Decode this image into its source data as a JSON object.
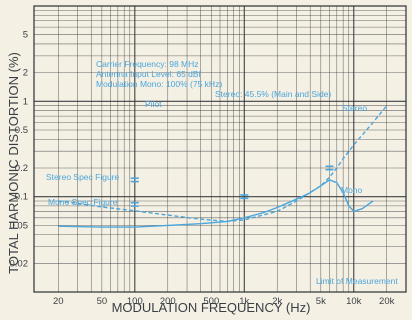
{
  "chart_data": {
    "type": "line",
    "xlabel": "MODULATION FREQUENCY (Hz)",
    "ylabel": "TOTAL HARMONIC DISTORTION (%)",
    "x_scale": "log",
    "y_scale": "log",
    "xlim": [
      12,
      30000
    ],
    "ylim": [
      0.01,
      10
    ],
    "grid": true,
    "x_ticks": [
      {
        "v": 20,
        "label": "20"
      },
      {
        "v": 50,
        "label": "50"
      },
      {
        "v": 100,
        "label": "100"
      },
      {
        "v": 200,
        "label": "200"
      },
      {
        "v": 500,
        "label": "500"
      },
      {
        "v": 1000,
        "label": "1k"
      },
      {
        "v": 2000,
        "label": "2k"
      },
      {
        "v": 5000,
        "label": "5k"
      },
      {
        "v": 10000,
        "label": "10k"
      },
      {
        "v": 20000,
        "label": "20k"
      }
    ],
    "y_ticks": [
      {
        "v": 5,
        "label": "5"
      },
      {
        "v": 2,
        "label": "2"
      },
      {
        "v": 1,
        "label": "1"
      },
      {
        "v": 0.5,
        "label": "0.5"
      },
      {
        "v": 0.2,
        "label": "0.2"
      },
      {
        "v": 0.1,
        "label": "0.1"
      },
      {
        "v": 0.05,
        "label": "0.05"
      },
      {
        "v": 0.02,
        "label": "0.02"
      }
    ],
    "series": [
      {
        "name": "Stereo",
        "style": "dashed",
        "x": [
          20,
          30,
          50,
          100,
          200,
          400,
          700,
          1000,
          2000,
          3000,
          5000,
          6000,
          7000,
          8000,
          10000,
          15000,
          20000
        ],
        "y": [
          0.09,
          0.085,
          0.078,
          0.071,
          0.064,
          0.058,
          0.055,
          0.057,
          0.07,
          0.09,
          0.13,
          0.16,
          0.2,
          0.25,
          0.35,
          0.6,
          0.9
        ]
      },
      {
        "name": "Mono",
        "style": "solid",
        "x": [
          20,
          50,
          100,
          200,
          400,
          700,
          1000,
          1500,
          2000,
          3000,
          4000,
          5000,
          6000,
          7000,
          8000,
          9000,
          10000,
          12000,
          15000
        ],
        "y": [
          0.049,
          0.048,
          0.048,
          0.05,
          0.052,
          0.055,
          0.06,
          0.068,
          0.077,
          0.094,
          0.11,
          0.13,
          0.15,
          0.14,
          0.11,
          0.08,
          0.07,
          0.075,
          0.09
        ]
      }
    ],
    "spec_marks": [
      {
        "x": 100,
        "y": 0.15
      },
      {
        "x": 100,
        "y": 0.083
      },
      {
        "x": 1000,
        "y": 0.1
      },
      {
        "x": 6000,
        "y": 0.2
      }
    ],
    "annotations": {
      "carrier_frequency": "Carrier Frequency:  98 MHz",
      "antenna_input": "Antenna Input Level: 65 dBf",
      "modulation_mono": "Modulation  Mono:      100% (75 kHz)",
      "modulation_stereo": "Stereo:    45.5% (Main and Side)",
      "pilot": "Pilot",
      "stereo_spec": "Stereo Spec Figure",
      "mono_spec": "Mono Spec Figure",
      "stereo_label": "Stereo",
      "mono_label": "Mono",
      "limit": "Limit of Measurement"
    },
    "colors": {
      "background": "#f5f0e4",
      "grid": "#2b2f33",
      "curve": "#4aa6dc",
      "axis_text": "#3a3f45"
    }
  }
}
